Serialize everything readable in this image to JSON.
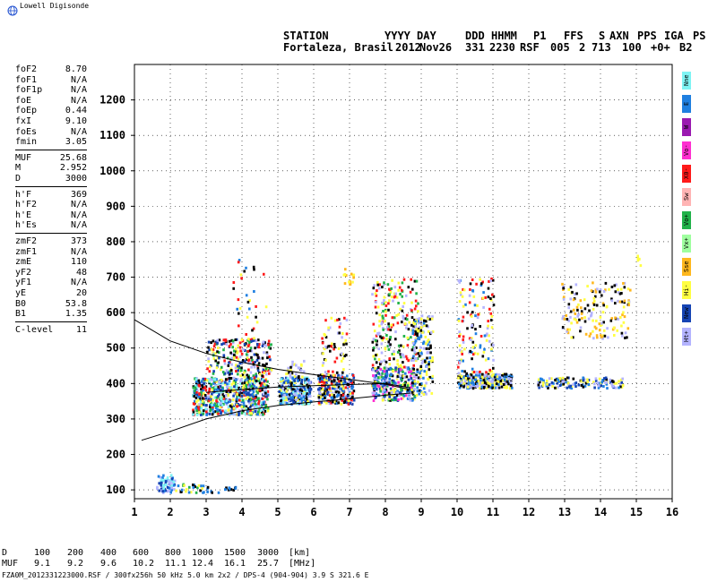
{
  "brand": "Lowell Digisonde",
  "header": {
    "labels": [
      "STATION",
      "YYYY",
      "DAY",
      "DDD",
      "HHMM",
      "P1",
      "FFS",
      "S",
      "AXN",
      "PPS",
      "IGA",
      "PS"
    ],
    "values": [
      "Fortaleza, Brasil",
      "2012",
      "Nov26",
      "331",
      "2230",
      "RSF",
      "005",
      "2",
      "713",
      "100",
      "+0+",
      "B2"
    ]
  },
  "params": [
    {
      "name": "foF2",
      "value": "8.70"
    },
    {
      "name": "foF1",
      "value": "N/A"
    },
    {
      "name": "foF1p",
      "value": "N/A"
    },
    {
      "name": "foE",
      "value": "N/A"
    },
    {
      "name": "foEp",
      "value": "0.44"
    },
    {
      "name": "fxI",
      "value": "9.10"
    },
    {
      "name": "foEs",
      "value": "N/A"
    },
    {
      "name": "fmin",
      "value": "3.05"
    },
    {
      "name": "MUF",
      "value": "25.68"
    },
    {
      "name": "M",
      "value": "2.952"
    },
    {
      "name": "D",
      "value": "3000"
    },
    {
      "name": "h'F",
      "value": "369"
    },
    {
      "name": "h'F2",
      "value": "N/A"
    },
    {
      "name": "h'E",
      "value": "N/A"
    },
    {
      "name": "h'Es",
      "value": "N/A"
    },
    {
      "name": "zmF2",
      "value": "373"
    },
    {
      "name": "zmF1",
      "value": "N/A"
    },
    {
      "name": "zmE",
      "value": "110"
    },
    {
      "name": "yF2",
      "value": "48"
    },
    {
      "name": "yF1",
      "value": "N/A"
    },
    {
      "name": "yE",
      "value": "20"
    },
    {
      "name": "B0",
      "value": "53.8"
    },
    {
      "name": "B1",
      "value": "1.35"
    },
    {
      "name": "C-level",
      "value": "11"
    }
  ],
  "legend": [
    {
      "label": "Nne",
      "color": "#7ff4f4"
    },
    {
      "label": "E",
      "color": "#1f7fe0"
    },
    {
      "label": "W",
      "color": "#9a19b0"
    },
    {
      "label": "Vo-",
      "color": "#ff2fd0"
    },
    {
      "label": "X0-",
      "color": "#ff1a1a"
    },
    {
      "label": "Sw",
      "color": "#ffb4b4"
    },
    {
      "label": "Vo+",
      "color": "#22b24a"
    },
    {
      "label": "Vx+",
      "color": "#9fff9f"
    },
    {
      "label": "Sse",
      "color": "#ffb81e"
    },
    {
      "label": "Hi-",
      "color": "#ffff42"
    },
    {
      "label": "New",
      "color": "#1644b4"
    },
    {
      "label": "Ht+",
      "color": "#b4b4ff"
    }
  ],
  "bottom_table": {
    "d_label": "D",
    "d_values": [
      "100",
      "200",
      "400",
      "600",
      "800",
      "1000",
      "1500",
      "3000"
    ],
    "d_unit": "[km]",
    "muf_label": "MUF",
    "muf_values": [
      "9.1",
      "9.2",
      "9.6",
      "10.2",
      "11.1",
      "12.4",
      "16.1",
      "25.7"
    ],
    "muf_unit": "[MHz]"
  },
  "footer": "FZA0M_2012331223000.RSF / 300fx256h 50 kHz 5.0 km 2x2 / DPS-4 (904-904)  3.9 S 321.6 E",
  "chart_data": {
    "type": "scatter",
    "xlim": [
      1,
      16
    ],
    "ylim": [
      75,
      1300
    ],
    "x_ticks": [
      1,
      2,
      3,
      4,
      5,
      6,
      7,
      8,
      9,
      10,
      11,
      12,
      13,
      14,
      15,
      16
    ],
    "y_ticks": [
      100,
      200,
      300,
      400,
      500,
      600,
      700,
      800,
      900,
      1000,
      1100,
      1200
    ],
    "grid": true,
    "clusters": [
      {
        "fmin": 1.6,
        "fmax": 2.1,
        "hmin": 95,
        "hmax": 145,
        "n": 70,
        "palette": [
          "#1f7fe0",
          "#7ff4f4",
          "#b4b4ff",
          "#1644b4"
        ]
      },
      {
        "fmin": 2.1,
        "fmax": 2.9,
        "hmin": 95,
        "hmax": 120,
        "n": 25,
        "palette": [
          "#000000",
          "#1f7fe0",
          "#22b24a",
          "#ffff42"
        ]
      },
      {
        "fmin": 2.9,
        "fmax": 3.8,
        "hmin": 95,
        "hmax": 115,
        "n": 18,
        "palette": [
          "#000000",
          "#1f7fe0"
        ]
      },
      {
        "fmin": 2.6,
        "fmax": 4.7,
        "hmin": 315,
        "hmax": 420,
        "n": 700,
        "palette": [
          "#1f7fe0",
          "#7ff4f4",
          "#000000",
          "#ff1a1a",
          "#ffff42",
          "#b4b4ff",
          "#22b24a",
          "#1644b4"
        ]
      },
      {
        "fmin": 3.0,
        "fmax": 4.8,
        "hmin": 420,
        "hmax": 530,
        "n": 240,
        "palette": [
          "#000000",
          "#ffff42",
          "#b4b4ff",
          "#ff1a1a",
          "#22b24a",
          "#1644b4"
        ]
      },
      {
        "fmin": 3.7,
        "fmax": 4.7,
        "hmin": 530,
        "hmax": 760,
        "n": 30,
        "palette": [
          "#ffff42",
          "#000000",
          "#1f7fe0",
          "#ff1a1a"
        ]
      },
      {
        "fmin": 5.0,
        "fmax": 5.9,
        "hmin": 345,
        "hmax": 420,
        "n": 280,
        "palette": [
          "#1f7fe0",
          "#7ff4f4",
          "#ffff42",
          "#000000",
          "#b4b4ff",
          "#1644b4"
        ]
      },
      {
        "fmin": 5.2,
        "fmax": 5.7,
        "hmin": 420,
        "hmax": 470,
        "n": 30,
        "palette": [
          "#ffff42",
          "#000000",
          "#b4b4ff"
        ]
      },
      {
        "fmin": 6.1,
        "fmax": 7.1,
        "hmin": 345,
        "hmax": 430,
        "n": 280,
        "palette": [
          "#b4b4ff",
          "#1f7fe0",
          "#ffff42",
          "#000000",
          "#ff1a1a",
          "#1644b4"
        ]
      },
      {
        "fmin": 6.2,
        "fmax": 6.9,
        "hmin": 430,
        "hmax": 600,
        "n": 60,
        "palette": [
          "#ffff42",
          "#ff1a1a",
          "#b4b4ff",
          "#000000"
        ]
      },
      {
        "fmin": 6.8,
        "fmax": 7.1,
        "hmin": 680,
        "hmax": 730,
        "n": 14,
        "palette": [
          "#ffff42",
          "#ffb81e"
        ]
      },
      {
        "fmin": 7.6,
        "fmax": 8.8,
        "hmin": 355,
        "hmax": 450,
        "n": 320,
        "palette": [
          "#b4b4ff",
          "#1f7fe0",
          "#ffff42",
          "#000000",
          "#ff2fd0",
          "#1644b4",
          "#22b24a"
        ]
      },
      {
        "fmin": 7.6,
        "fmax": 8.9,
        "hmin": 450,
        "hmax": 700,
        "n": 220,
        "palette": [
          "#ffff42",
          "#b4b4ff",
          "#000000",
          "#ff1a1a",
          "#22b24a"
        ]
      },
      {
        "fmin": 8.7,
        "fmax": 9.3,
        "hmin": 370,
        "hmax": 600,
        "n": 180,
        "palette": [
          "#b4b4ff",
          "#ffff42",
          "#000000",
          "#1f7fe0"
        ]
      },
      {
        "fmin": 10.0,
        "fmax": 11.5,
        "hmin": 390,
        "hmax": 430,
        "n": 260,
        "palette": [
          "#b4b4ff",
          "#ffff42",
          "#000000",
          "#1f7fe0"
        ]
      },
      {
        "fmin": 10.0,
        "fmax": 11.0,
        "hmin": 430,
        "hmax": 700,
        "n": 140,
        "palette": [
          "#ffff42",
          "#b4b4ff",
          "#000000",
          "#ff1a1a",
          "#1f7fe0"
        ]
      },
      {
        "fmin": 12.2,
        "fmax": 14.6,
        "hmin": 390,
        "hmax": 420,
        "n": 150,
        "palette": [
          "#b4b4ff",
          "#000000",
          "#1644b4",
          "#1f7fe0",
          "#ffff42"
        ]
      },
      {
        "fmin": 12.9,
        "fmax": 14.8,
        "hmin": 530,
        "hmax": 690,
        "n": 170,
        "palette": [
          "#b4b4ff",
          "#ffff42",
          "#000000",
          "#ffb81e"
        ]
      },
      {
        "fmin": 15.0,
        "fmax": 15.1,
        "hmin": 720,
        "hmax": 770,
        "n": 5,
        "palette": [
          "#ffff42"
        ]
      }
    ],
    "profile_curves": [
      {
        "name": "upper",
        "points": [
          [
            1,
            580
          ],
          [
            2,
            520
          ],
          [
            3,
            485
          ],
          [
            4,
            460
          ],
          [
            5,
            440
          ],
          [
            6,
            425
          ],
          [
            7,
            412
          ],
          [
            8,
            398
          ],
          [
            8.7,
            383
          ]
        ]
      },
      {
        "name": "lower",
        "points": [
          [
            1.2,
            240
          ],
          [
            2,
            265
          ],
          [
            3,
            300
          ],
          [
            4,
            323
          ],
          [
            5,
            338
          ],
          [
            6,
            348
          ],
          [
            7,
            357
          ],
          [
            8,
            367
          ],
          [
            8.7,
            373
          ]
        ]
      },
      {
        "name": "inner",
        "points": [
          [
            3,
            375
          ],
          [
            4,
            383
          ],
          [
            5,
            390
          ],
          [
            6,
            394
          ],
          [
            7,
            397
          ],
          [
            8,
            400
          ],
          [
            8.7,
            388
          ]
        ]
      }
    ]
  }
}
